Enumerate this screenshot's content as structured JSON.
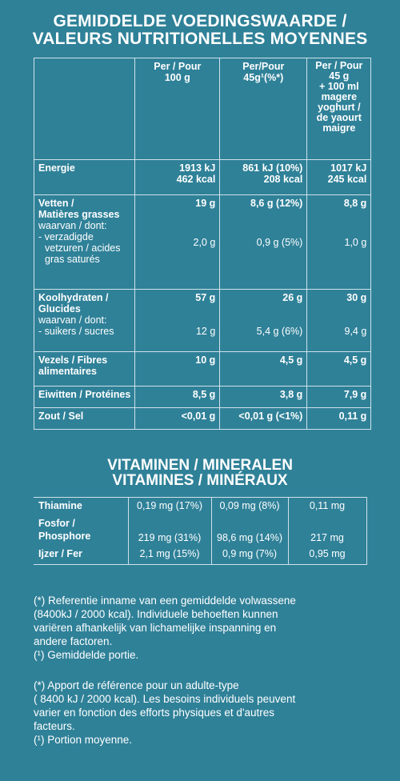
{
  "title": {
    "line1": "GEMIDDELDE VOEDINGSWAARDE /",
    "line2": "VALEURS NUTRITIONELLES MOYENNES"
  },
  "headers": {
    "col1": [
      "Per / Pour",
      "100 g"
    ],
    "col2": [
      "Per/Pour",
      "45g¹(%*)"
    ],
    "col3": [
      "Per / Pour",
      "45 g",
      "+ 100 ml",
      "magere",
      "yoghurt /",
      "de yaourt",
      "maigre"
    ]
  },
  "rows": {
    "energy": {
      "label": "Energie",
      "c1": [
        "1913 kJ",
        "462 kcal"
      ],
      "c2": [
        "861 kJ (10%)",
        "208 kcal"
      ],
      "c3": [
        "1017 kJ",
        "245 kcal"
      ]
    },
    "fat": {
      "label1": "Vetten /",
      "label2": "Matières grasses",
      "c1": "19 g",
      "c2": "8,6 g (12%)",
      "c3": "8,8 g"
    },
    "fat_sub": {
      "label1": "waarvan / dont:",
      "label2": "- verzadigde",
      "label3": "vetzuren / acides",
      "label4": "gras saturés",
      "c1": "2,0 g",
      "c2": "0,9 g (5%)",
      "c3": "1,0 g"
    },
    "carbs": {
      "label1": "Koolhydraten /",
      "label2": "Glucides",
      "c1": "57 g",
      "c2": "26 g",
      "c3": "30 g"
    },
    "carbs_sub": {
      "label1": "waarvan / dont:",
      "label2": "- suikers / sucres",
      "c1": "12 g",
      "c2": "5,4 g (6%)",
      "c3": "9,4 g"
    },
    "fibre": {
      "label1": "Vezels / Fibres",
      "label2": "alimentaires",
      "c1": "10 g",
      "c2": "4,5 g",
      "c3": "4,5 g"
    },
    "protein": {
      "label": "Eiwitten / Protéines",
      "c1": "8,5 g",
      "c2": "3,8 g",
      "c3": "7,9 g"
    },
    "salt": {
      "label": "Zout / Sel",
      "c1": "<0,01 g",
      "c2": "<0,01 g (<1%)",
      "c3": "0,11 g"
    }
  },
  "vitamins": {
    "title1": "VITAMINEN / MINERALEN",
    "title2": "VITAMINES / MINÉRAUX",
    "thiamine": {
      "label": "Thiamine",
      "c1": "0,19 mg (17%)",
      "c2": "0,09 mg (8%)",
      "c3": "0,11 mg"
    },
    "phosphor": {
      "label1": "Fosfor /",
      "label2": "Phosphore",
      "c1": "219 mg (31%)",
      "c2": "98,6 mg (14%)",
      "c3": "217 mg"
    },
    "iron": {
      "label": "Ijzer / Fer",
      "c1": "2,1 mg (15%)",
      "c2": "0,9 mg (7%)",
      "c3": "0,95 mg"
    }
  },
  "footnotes": {
    "nl_1": "(*) Referentie inname van een gemiddelde volwassene",
    "nl_2": "(8400kJ / 2000 kcal). Individuele behoeften kunnen",
    "nl_3": "variëren afhankelijk van lichamelijke inspanning en",
    "nl_4": "andere factoren.",
    "nl_5": "(¹) Gemiddelde portie.",
    "fr_1": "(*) Apport de référence pour un adulte-type",
    "fr_2": "( 8400 kJ / 2000 kcal). Les besoins individuels peuvent",
    "fr_3": "varier en fonction des efforts physiques et d'autres",
    "fr_4": "facteurs.",
    "fr_5": "(¹) Portion moyenne."
  },
  "colors": {
    "background": "#2f8198",
    "text": "#ffffff",
    "lines": "#cfe3ea"
  }
}
